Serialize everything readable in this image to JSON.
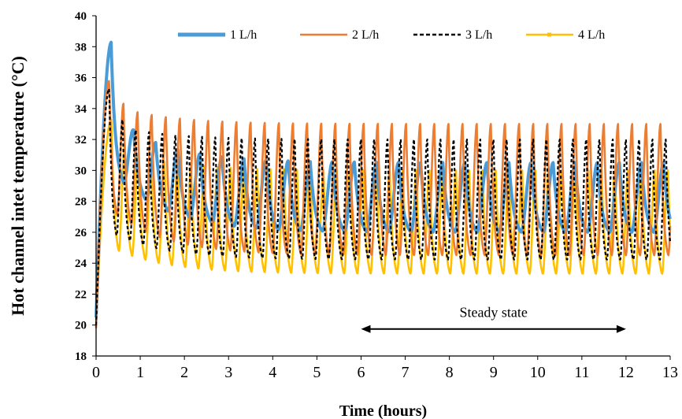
{
  "chart_data": {
    "type": "line",
    "xlabel": "Time (hours)",
    "ylabel": "Hot channel  intet temperature (°C)",
    "xlim": [
      0,
      13
    ],
    "ylim": [
      18,
      40
    ],
    "xticks": [
      0,
      1,
      2,
      3,
      4,
      5,
      6,
      7,
      8,
      9,
      10,
      11,
      12,
      13
    ],
    "yticks": [
      18,
      20,
      22,
      24,
      26,
      28,
      30,
      32,
      34,
      36,
      38,
      40
    ],
    "grid": false,
    "legend_position": "top",
    "series": [
      {
        "name": "1 L/h",
        "color": "#4a9bd6",
        "style": "solid-thick",
        "start": 20.5,
        "peak_time": 0.35,
        "peak": 38.3,
        "initial_upper": 33.5,
        "steady_upper": 30.5,
        "initial_lower": 30.0,
        "steady_lower": 26.0,
        "period": 0.5
      },
      {
        "name": "2 L/h",
        "color": "#ed7d31",
        "style": "solid",
        "start": 19.8,
        "peak_time": 0.3,
        "peak": 35.8,
        "initial_upper": 34.3,
        "steady_upper": 33.0,
        "initial_lower": 27.5,
        "steady_lower": 24.5,
        "period": 0.32
      },
      {
        "name": "3 L/h",
        "color": "#000000",
        "style": "dashed",
        "start": 20.0,
        "peak_time": 0.3,
        "peak": 35.3,
        "initial_upper": 33.0,
        "steady_upper": 32.0,
        "initial_lower": 26.0,
        "steady_lower": 24.2,
        "period": 0.3
      },
      {
        "name": "4 L/h",
        "color": "#ffc000",
        "style": "solid-markers",
        "start": 20.3,
        "peak_time": 0.35,
        "peak": 33.3,
        "initial_upper": 31.5,
        "steady_upper": 30.0,
        "initial_lower": 25.0,
        "steady_lower": 23.3,
        "period": 0.3
      }
    ],
    "annotations": [
      {
        "text": "Steady state",
        "x_start": 6,
        "x_end": 12,
        "y": 20
      }
    ]
  }
}
